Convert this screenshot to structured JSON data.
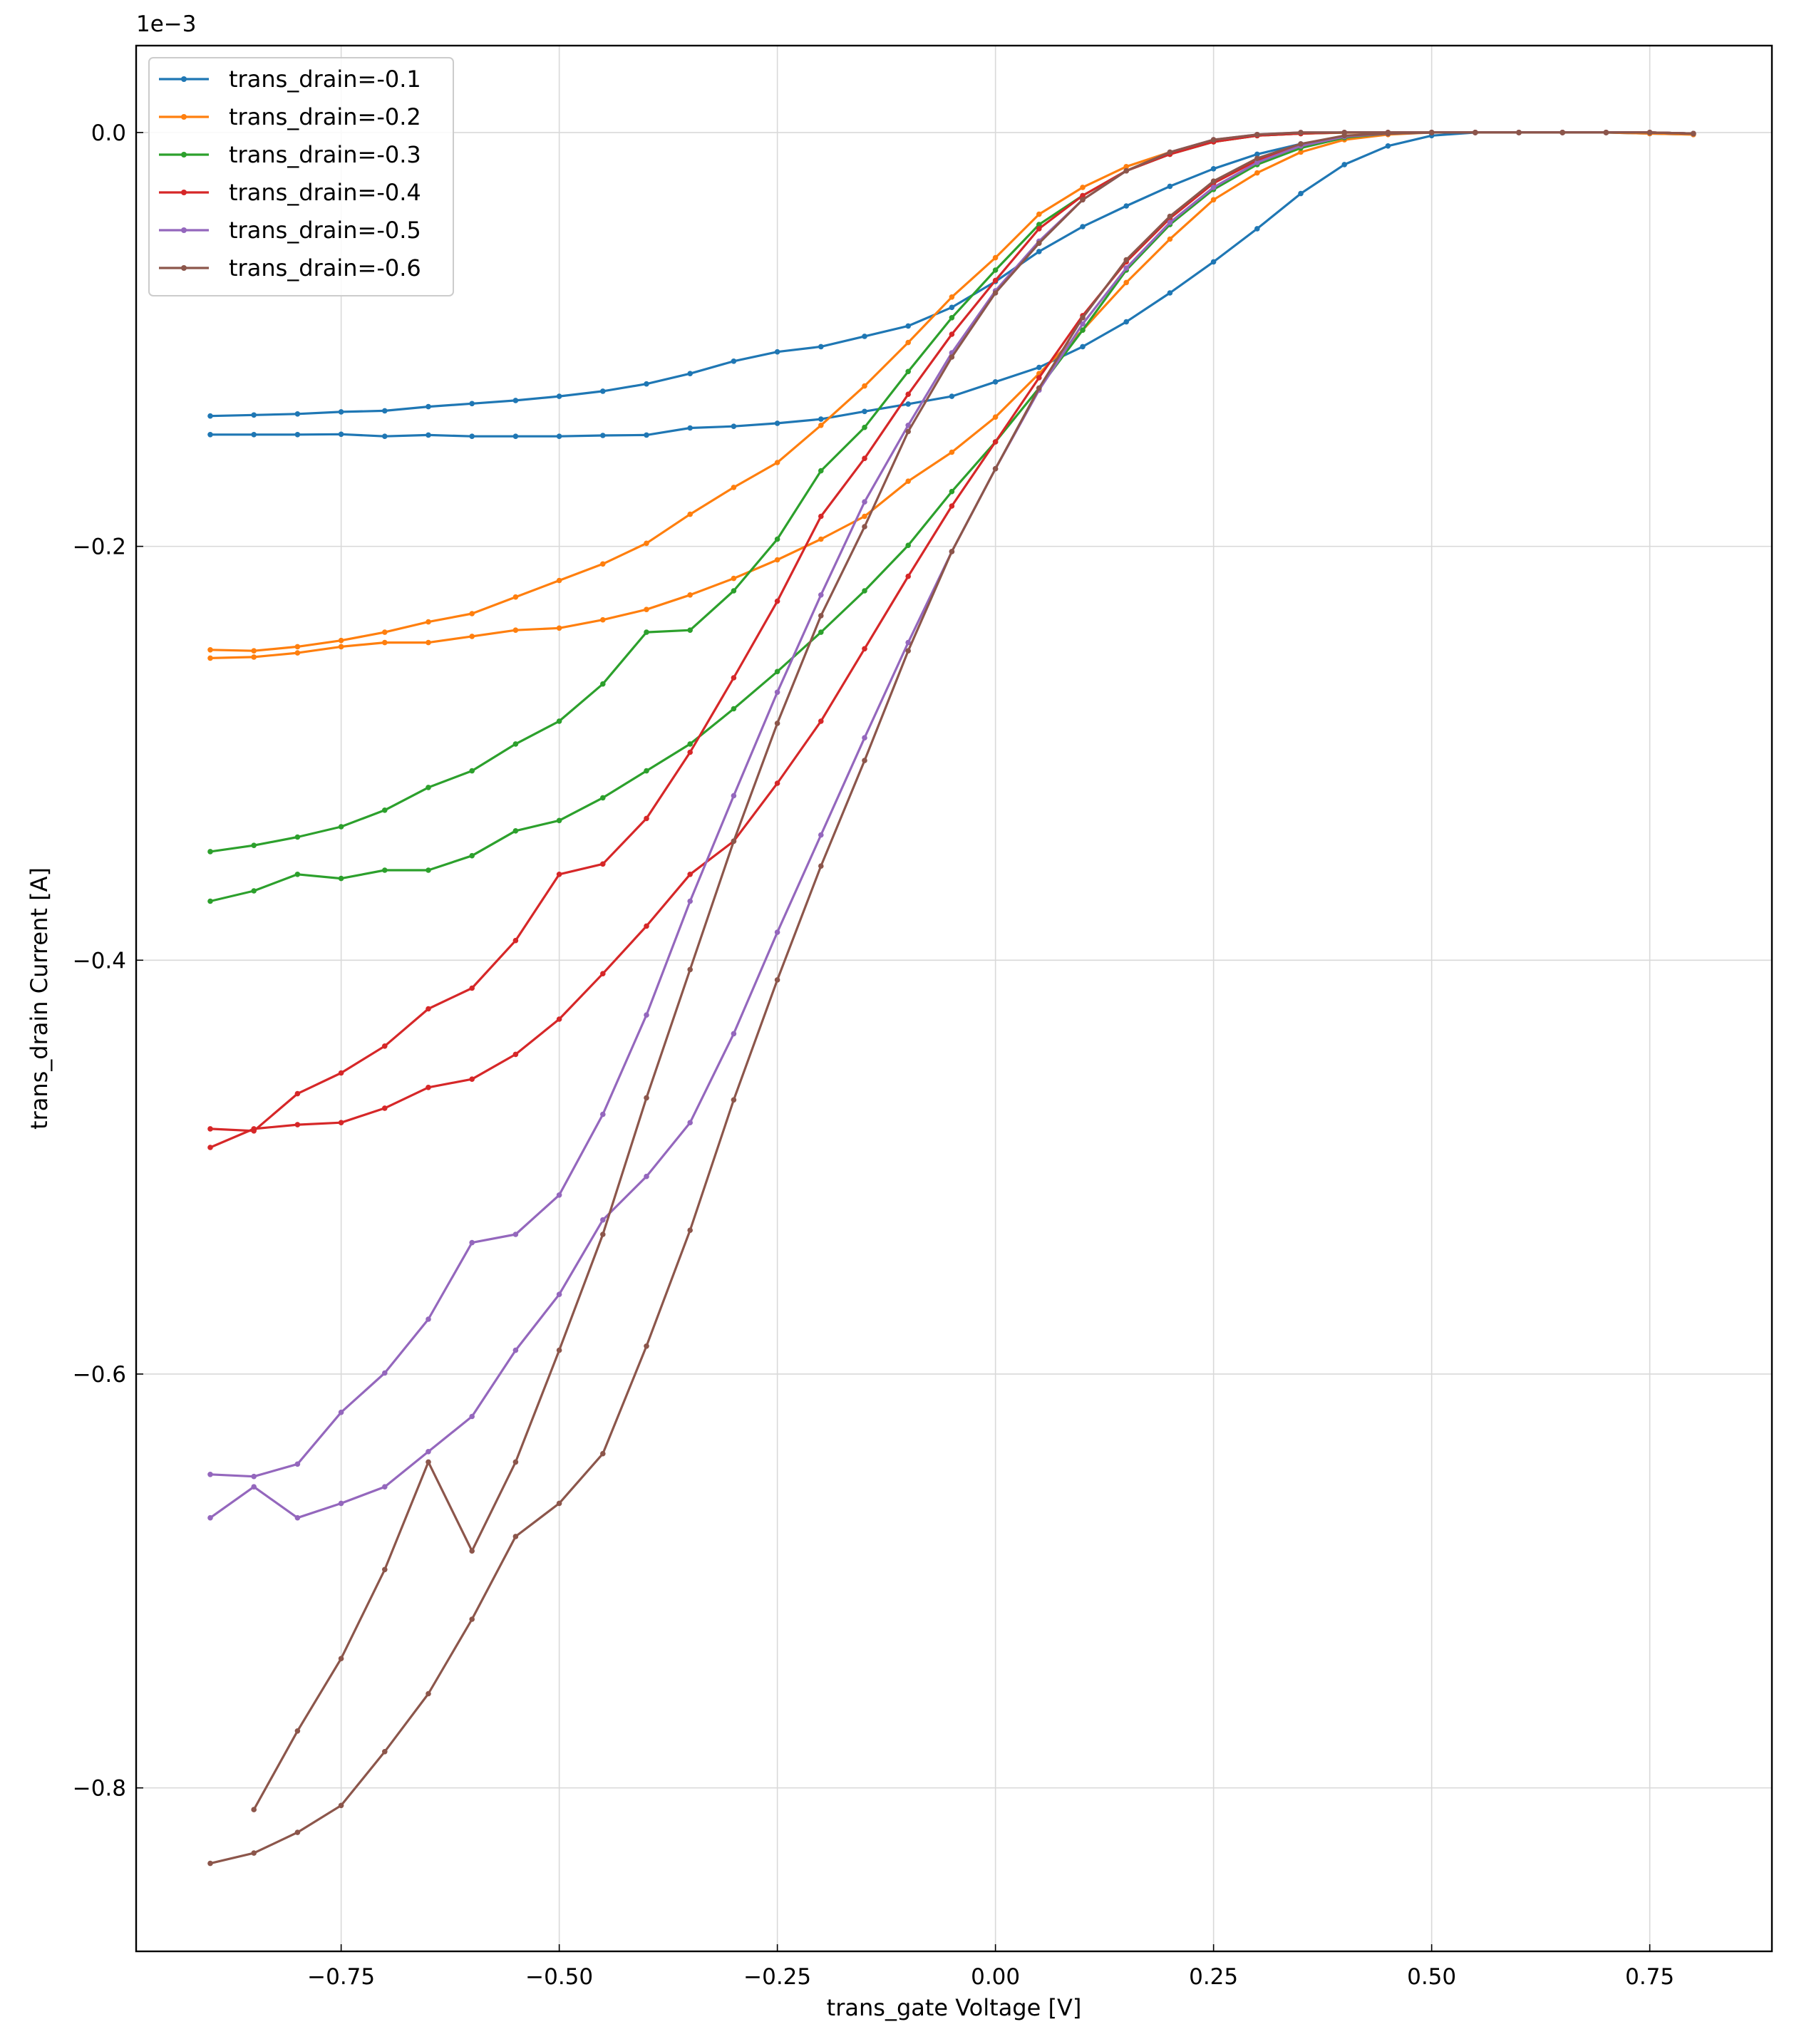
{
  "chart_data": {
    "type": "line",
    "xlabel": "trans_gate Voltage [V]",
    "ylabel": "trans_drain Current [A]",
    "offset_label": "1e−3",
    "xlim": [
      -0.985,
      0.89
    ],
    "ylim": [
      -0.879,
      0.042
    ],
    "xticks": [
      -0.75,
      -0.5,
      -0.25,
      0.0,
      0.25,
      0.5,
      0.75
    ],
    "xtick_labels": [
      "−0.75",
      "−0.50",
      "−0.25",
      "0.00",
      "0.25",
      "0.50",
      "0.75"
    ],
    "yticks": [
      0.0,
      -0.2,
      -0.4,
      -0.6,
      -0.8
    ],
    "ytick_labels": [
      "0.0",
      "−0.2",
      "−0.4",
      "−0.6",
      "−0.8"
    ],
    "grid": true,
    "legend_position": "top-left",
    "colors": [
      "#1f77b4",
      "#ff7f0e",
      "#2ca02c",
      "#d62728",
      "#9467bd",
      "#8c564b"
    ],
    "series": [
      {
        "name": "trans_drain=-0.1",
        "forward": {
          "x": [
            -0.9,
            -0.85,
            -0.8,
            -0.75,
            -0.7,
            -0.65,
            -0.6,
            -0.55,
            -0.5,
            -0.45,
            -0.4,
            -0.35,
            -0.3,
            -0.25,
            -0.2,
            -0.15,
            -0.1,
            -0.05,
            0.0,
            0.05,
            0.1,
            0.15,
            0.2,
            0.25,
            0.3,
            0.35,
            0.4,
            0.45,
            0.5,
            0.55,
            0.6,
            0.65,
            0.7,
            0.75,
            0.8
          ],
          "y": [
            -0.137,
            -0.1365,
            -0.136,
            -0.135,
            -0.1345,
            -0.1325,
            -0.131,
            -0.1295,
            -0.1275,
            -0.125,
            -0.1215,
            -0.1165,
            -0.1105,
            -0.106,
            -0.1035,
            -0.0985,
            -0.0935,
            -0.0845,
            -0.072,
            -0.0575,
            -0.0455,
            -0.0355,
            -0.026,
            -0.0175,
            -0.0105,
            -0.0055,
            -0.002,
            -0.0005,
            0.0,
            0.0,
            0.0,
            0.0,
            0.0,
            -0.0005,
            -0.001
          ]
        },
        "reverse": {
          "x": [
            -0.9,
            -0.85,
            -0.8,
            -0.75,
            -0.7,
            -0.65,
            -0.6,
            -0.55,
            -0.5,
            -0.45,
            -0.4,
            -0.35,
            -0.3,
            -0.25,
            -0.2,
            -0.15,
            -0.1,
            -0.05,
            0.0,
            0.05,
            0.1,
            0.15,
            0.2,
            0.25,
            0.3,
            0.35,
            0.4,
            0.45,
            0.5,
            0.55,
            0.6,
            0.65,
            0.7,
            0.75,
            0.8
          ],
          "y": [
            -0.146,
            -0.146,
            -0.146,
            -0.1458,
            -0.1468,
            -0.1462,
            -0.1468,
            -0.1468,
            -0.1468,
            -0.1464,
            -0.1462,
            -0.1428,
            -0.142,
            -0.1405,
            -0.1385,
            -0.1348,
            -0.1312,
            -0.1275,
            -0.1205,
            -0.1135,
            -0.1035,
            -0.0915,
            -0.0775,
            -0.0625,
            -0.0465,
            -0.0295,
            -0.0155,
            -0.0065,
            -0.0015,
            0.0,
            0.0,
            0.0,
            0.0,
            0.0,
            -0.0005
          ]
        }
      },
      {
        "name": "trans_drain=-0.2",
        "forward": {
          "x": [
            -0.9,
            -0.85,
            -0.8,
            -0.75,
            -0.7,
            -0.65,
            -0.6,
            -0.55,
            -0.5,
            -0.45,
            -0.4,
            -0.35,
            -0.3,
            -0.25,
            -0.2,
            -0.15,
            -0.1,
            -0.05,
            0.0,
            0.05,
            0.1,
            0.15,
            0.2,
            0.25,
            0.3,
            0.35,
            0.4,
            0.45,
            0.5,
            0.55,
            0.6,
            0.65,
            0.7,
            0.75,
            0.8
          ],
          "y": [
            -0.25,
            -0.2505,
            -0.2485,
            -0.2455,
            -0.2415,
            -0.2365,
            -0.2325,
            -0.2245,
            -0.2165,
            -0.2085,
            -0.1985,
            -0.1845,
            -0.1715,
            -0.1595,
            -0.1415,
            -0.1225,
            -0.1015,
            -0.0795,
            -0.0605,
            -0.0395,
            -0.0265,
            -0.0165,
            -0.0095,
            -0.0045,
            -0.0015,
            -0.0005,
            -0.0001,
            0.0,
            0.0,
            0.0,
            0.0,
            0.0,
            0.0,
            0.0,
            -0.0005
          ]
        },
        "reverse": {
          "x": [
            -0.9,
            -0.85,
            -0.8,
            -0.75,
            -0.7,
            -0.65,
            -0.6,
            -0.55,
            -0.5,
            -0.45,
            -0.4,
            -0.35,
            -0.3,
            -0.25,
            -0.2,
            -0.15,
            -0.1,
            -0.05,
            0.0,
            0.05,
            0.1,
            0.15,
            0.2,
            0.25,
            0.3,
            0.35,
            0.4,
            0.45,
            0.5,
            0.55,
            0.6,
            0.65,
            0.7,
            0.75,
            0.8
          ],
          "y": [
            -0.254,
            -0.2535,
            -0.2515,
            -0.2485,
            -0.2465,
            -0.2465,
            -0.2435,
            -0.2405,
            -0.2395,
            -0.2355,
            -0.2305,
            -0.2235,
            -0.2155,
            -0.2065,
            -0.1965,
            -0.1855,
            -0.1685,
            -0.1545,
            -0.1375,
            -0.1165,
            -0.0955,
            -0.0725,
            -0.0515,
            -0.0325,
            -0.0195,
            -0.0095,
            -0.0035,
            -0.001,
            0.0,
            0.0,
            0.0,
            0.0,
            0.0,
            -0.0005,
            -0.001
          ]
        }
      },
      {
        "name": "trans_drain=-0.3",
        "forward": {
          "x": [
            -0.9,
            -0.85,
            -0.8,
            -0.75,
            -0.7,
            -0.65,
            -0.6,
            -0.55,
            -0.5,
            -0.45,
            -0.4,
            -0.35,
            -0.3,
            -0.25,
            -0.2,
            -0.15,
            -0.1,
            -0.05,
            0.0,
            0.05,
            0.1,
            0.15,
            0.2,
            0.25,
            0.3,
            0.35,
            0.4,
            0.45,
            0.5,
            0.55,
            0.6,
            0.65,
            0.7,
            0.75,
            0.8
          ],
          "y": [
            -0.3475,
            -0.3445,
            -0.3405,
            -0.3355,
            -0.3275,
            -0.3165,
            -0.3085,
            -0.2955,
            -0.2845,
            -0.2665,
            -0.2415,
            -0.2405,
            -0.2215,
            -0.1965,
            -0.1635,
            -0.1425,
            -0.1155,
            -0.0895,
            -0.0665,
            -0.0445,
            -0.0305,
            -0.0185,
            -0.0105,
            -0.0045,
            -0.0015,
            -0.0005,
            0.0,
            0.0,
            0.0,
            0.0,
            0.0,
            0.0,
            0.0,
            0.0,
            -0.0005
          ]
        },
        "reverse": {
          "x": [
            -0.9,
            -0.85,
            -0.8,
            -0.75,
            -0.7,
            -0.65,
            -0.6,
            -0.55,
            -0.5,
            -0.45,
            -0.4,
            -0.35,
            -0.3,
            -0.25,
            -0.2,
            -0.15,
            -0.1,
            -0.05,
            0.0,
            0.05,
            0.1,
            0.15,
            0.2,
            0.25,
            0.3,
            0.35,
            0.4,
            0.45,
            0.5,
            0.55,
            0.6,
            0.65,
            0.7,
            0.75,
            0.8
          ],
          "y": [
            -0.3715,
            -0.3665,
            -0.3585,
            -0.3605,
            -0.3565,
            -0.3565,
            -0.3495,
            -0.3375,
            -0.3325,
            -0.3215,
            -0.3085,
            -0.2955,
            -0.2785,
            -0.2605,
            -0.2415,
            -0.2215,
            -0.1995,
            -0.1735,
            -0.1495,
            -0.1235,
            -0.0955,
            -0.0665,
            -0.0445,
            -0.0275,
            -0.0155,
            -0.0075,
            -0.0025,
            -0.0005,
            0.0,
            0.0,
            0.0,
            0.0,
            0.0,
            0.0,
            -0.0005
          ]
        }
      },
      {
        "name": "trans_drain=-0.4",
        "forward": {
          "x": [
            -0.9,
            -0.85,
            -0.8,
            -0.75,
            -0.7,
            -0.65,
            -0.6,
            -0.55,
            -0.5,
            -0.45,
            -0.4,
            -0.35,
            -0.3,
            -0.25,
            -0.2,
            -0.15,
            -0.1,
            -0.05,
            0.0,
            0.05,
            0.1,
            0.15,
            0.2,
            0.25,
            0.3,
            0.35,
            0.4,
            0.45,
            0.5,
            0.55,
            0.6,
            0.65,
            0.7,
            0.75,
            0.8
          ],
          "y": [
            -0.4815,
            -0.4825,
            -0.4645,
            -0.4545,
            -0.4415,
            -0.4235,
            -0.4135,
            -0.3905,
            -0.3585,
            -0.3535,
            -0.3315,
            -0.2995,
            -0.2635,
            -0.2265,
            -0.1855,
            -0.1575,
            -0.1265,
            -0.0975,
            -0.0715,
            -0.0465,
            -0.0305,
            -0.0185,
            -0.0105,
            -0.0045,
            -0.0015,
            -0.0005,
            0.0,
            0.0,
            0.0,
            0.0,
            0.0,
            0.0,
            0.0,
            0.0,
            -0.0005
          ]
        },
        "reverse": {
          "x": [
            -0.9,
            -0.85,
            -0.8,
            -0.75,
            -0.7,
            -0.65,
            -0.6,
            -0.55,
            -0.5,
            -0.45,
            -0.4,
            -0.35,
            -0.3,
            -0.25,
            -0.2,
            -0.15,
            -0.1,
            -0.05,
            0.0,
            0.05,
            0.1,
            0.15,
            0.2,
            0.25,
            0.3,
            0.35,
            0.4,
            0.45,
            0.5,
            0.55,
            0.6,
            0.65,
            0.7,
            0.75,
            0.8
          ],
          "y": [
            -0.4905,
            -0.4815,
            -0.4795,
            -0.4785,
            -0.4715,
            -0.4615,
            -0.4575,
            -0.4455,
            -0.4285,
            -0.4065,
            -0.3835,
            -0.3585,
            -0.3425,
            -0.3145,
            -0.2845,
            -0.2495,
            -0.2145,
            -0.1805,
            -0.1495,
            -0.1185,
            -0.0885,
            -0.0625,
            -0.0415,
            -0.0245,
            -0.0135,
            -0.0065,
            -0.002,
            -0.0005,
            0.0,
            0.0,
            0.0,
            0.0,
            0.0,
            0.0,
            -0.0005
          ]
        }
      },
      {
        "name": "trans_drain=-0.5",
        "forward": {
          "x": [
            -0.9,
            -0.85,
            -0.8,
            -0.75,
            -0.7,
            -0.65,
            -0.6,
            -0.55,
            -0.5,
            -0.45,
            -0.4,
            -0.35,
            -0.3,
            -0.25,
            -0.2,
            -0.15,
            -0.1,
            -0.05,
            0.0,
            0.05,
            0.1,
            0.15,
            0.2,
            0.25,
            0.3,
            0.35,
            0.4,
            0.45,
            0.5,
            0.55,
            0.6,
            0.65,
            0.7,
            0.75,
            0.8
          ],
          "y": [
            -0.6485,
            -0.6495,
            -0.6435,
            -0.6185,
            -0.5995,
            -0.5735,
            -0.5365,
            -0.5325,
            -0.5135,
            -0.4745,
            -0.4265,
            -0.3715,
            -0.3205,
            -0.2705,
            -0.2235,
            -0.1785,
            -0.1415,
            -0.1065,
            -0.0765,
            -0.0525,
            -0.0325,
            -0.0185,
            -0.0095,
            -0.0035,
            -0.001,
            0.0,
            0.0,
            0.0,
            0.0,
            0.0,
            0.0,
            0.0,
            0.0,
            0.0,
            -0.0005
          ]
        },
        "reverse": {
          "x": [
            -0.9,
            -0.85,
            -0.8,
            -0.75,
            -0.7,
            -0.65,
            -0.6,
            -0.55,
            -0.5,
            -0.45,
            -0.4,
            -0.35,
            -0.3,
            -0.25,
            -0.2,
            -0.15,
            -0.1,
            -0.05,
            0.0,
            0.05,
            0.1,
            0.15,
            0.2,
            0.25,
            0.3,
            0.35,
            0.4,
            0.45,
            0.5,
            0.55,
            0.6,
            0.65,
            0.7,
            0.75,
            0.8
          ],
          "y": [
            -0.6695,
            -0.6545,
            -0.6695,
            -0.6625,
            -0.6545,
            -0.6375,
            -0.6205,
            -0.5885,
            -0.5615,
            -0.5255,
            -0.5045,
            -0.4785,
            -0.4355,
            -0.3865,
            -0.3395,
            -0.2925,
            -0.2465,
            -0.2025,
            -0.1625,
            -0.1245,
            -0.0925,
            -0.0655,
            -0.0435,
            -0.0265,
            -0.0145,
            -0.0065,
            -0.002,
            -0.0005,
            0.0,
            0.0,
            0.0,
            0.0,
            0.0,
            0.0,
            -0.0005
          ]
        }
      },
      {
        "name": "trans_drain=-0.6",
        "forward": {
          "x": [
            -0.85,
            -0.8,
            -0.75,
            -0.7,
            -0.65,
            -0.6,
            -0.55,
            -0.5,
            -0.45,
            -0.4,
            -0.35,
            -0.3,
            -0.25,
            -0.2,
            -0.15,
            -0.1,
            -0.05,
            0.0,
            0.05,
            0.1,
            0.15,
            0.2,
            0.25,
            0.3,
            0.35,
            0.4,
            0.45,
            0.5,
            0.55,
            0.6,
            0.65,
            0.7,
            0.75,
            0.8
          ],
          "y": [
            -0.8105,
            -0.7725,
            -0.7375,
            -0.6945,
            -0.6425,
            -0.6855,
            -0.6425,
            -0.5885,
            -0.5325,
            -0.4665,
            -0.4045,
            -0.3425,
            -0.2855,
            -0.2335,
            -0.1905,
            -0.1445,
            -0.1085,
            -0.0775,
            -0.0535,
            -0.0325,
            -0.0185,
            -0.0095,
            -0.0035,
            -0.001,
            0.0,
            0.0,
            0.0,
            0.0,
            0.0,
            0.0,
            0.0,
            0.0,
            0.0,
            -0.0005
          ]
        },
        "reverse": {
          "x": [
            -0.9,
            -0.85,
            -0.8,
            -0.75,
            -0.7,
            -0.65,
            -0.6,
            -0.55,
            -0.5,
            -0.45,
            -0.4,
            -0.35,
            -0.3,
            -0.25,
            -0.2,
            -0.15,
            -0.1,
            -0.05,
            0.0,
            0.05,
            0.1,
            0.15,
            0.2,
            0.25,
            0.3,
            0.35,
            0.4,
            0.45,
            0.5,
            0.55,
            0.6,
            0.65,
            0.7,
            0.75,
            0.8
          ],
          "y": [
            -0.8365,
            -0.8315,
            -0.8215,
            -0.8085,
            -0.7825,
            -0.7545,
            -0.7185,
            -0.6785,
            -0.6625,
            -0.6385,
            -0.5865,
            -0.5305,
            -0.4675,
            -0.4095,
            -0.3545,
            -0.3035,
            -0.2505,
            -0.2025,
            -0.1625,
            -0.1235,
            -0.0895,
            -0.0615,
            -0.0405,
            -0.0235,
            -0.0125,
            -0.0055,
            -0.0015,
            -0.0005,
            0.0,
            0.0,
            0.0,
            0.0,
            0.0,
            0.0,
            -0.0005
          ]
        }
      }
    ]
  }
}
